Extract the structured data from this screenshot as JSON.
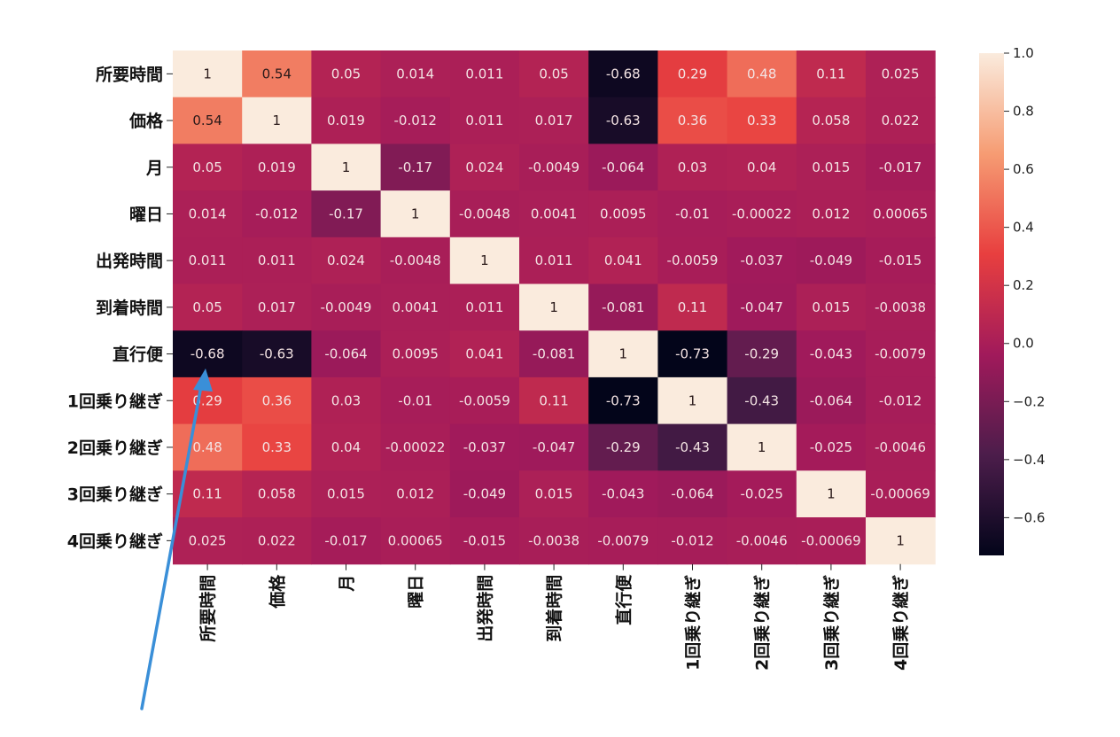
{
  "chart_data": {
    "type": "heatmap",
    "x_labels": [
      "所要時間",
      "価格",
      "月",
      "曜日",
      "出発時間",
      "到着時間",
      "直行便",
      "1回乗り継ぎ",
      "2回乗り継ぎ",
      "3回乗り継ぎ",
      "4回乗り継ぎ"
    ],
    "y_labels": [
      "所要時間",
      "価格",
      "月",
      "曜日",
      "出発時間",
      "到着時間",
      "直行便",
      "1回乗り継ぎ",
      "2回乗り継ぎ",
      "3回乗り継ぎ",
      "4回乗り継ぎ"
    ],
    "values": [
      [
        1,
        0.54,
        0.05,
        0.014,
        0.011,
        0.05,
        -0.68,
        0.29,
        0.48,
        0.11,
        0.025
      ],
      [
        0.54,
        1,
        0.019,
        -0.012,
        0.011,
        0.017,
        -0.63,
        0.36,
        0.33,
        0.058,
        0.022
      ],
      [
        0.05,
        0.019,
        1,
        -0.17,
        0.024,
        -0.0049,
        -0.064,
        0.03,
        0.04,
        0.015,
        -0.017
      ],
      [
        0.014,
        -0.012,
        -0.17,
        1,
        -0.0048,
        0.0041,
        0.0095,
        -0.01,
        -0.00022,
        0.012,
        0.00065
      ],
      [
        0.011,
        0.011,
        0.024,
        -0.0048,
        1,
        0.011,
        0.041,
        -0.0059,
        -0.037,
        -0.049,
        -0.015
      ],
      [
        0.05,
        0.017,
        -0.0049,
        0.0041,
        0.011,
        1,
        -0.081,
        0.11,
        -0.047,
        0.015,
        -0.0038
      ],
      [
        -0.68,
        -0.63,
        -0.064,
        0.0095,
        0.041,
        -0.081,
        1,
        -0.73,
        -0.29,
        -0.043,
        -0.0079
      ],
      [
        0.29,
        0.36,
        0.03,
        -0.01,
        -0.0059,
        0.11,
        -0.73,
        1,
        -0.43,
        -0.064,
        -0.012
      ],
      [
        0.48,
        0.33,
        0.04,
        -0.00022,
        -0.037,
        -0.047,
        -0.29,
        -0.43,
        1,
        -0.025,
        -0.0046
      ],
      [
        0.11,
        0.058,
        0.015,
        0.012,
        -0.049,
        0.015,
        -0.043,
        -0.064,
        -0.025,
        1,
        -0.00069
      ],
      [
        0.025,
        0.022,
        -0.017,
        0.00065,
        -0.015,
        -0.0038,
        -0.0079,
        -0.012,
        -0.0046,
        -0.00069,
        1
      ]
    ],
    "cell_labels": [
      [
        "1",
        "0.54",
        "0.05",
        "0.014",
        "0.011",
        "0.05",
        "-0.68",
        "0.29",
        "0.48",
        "0.11",
        "0.025"
      ],
      [
        "0.54",
        "1",
        "0.019",
        "-0.012",
        "0.011",
        "0.017",
        "-0.63",
        "0.36",
        "0.33",
        "0.058",
        "0.022"
      ],
      [
        "0.05",
        "0.019",
        "1",
        "-0.17",
        "0.024",
        "-0.0049",
        "-0.064",
        "0.03",
        "0.04",
        "0.015",
        "-0.017"
      ],
      [
        "0.014",
        "-0.012",
        "-0.17",
        "1",
        "-0.0048",
        "0.0041",
        "0.0095",
        "-0.01",
        "-0.00022",
        "0.012",
        "0.00065"
      ],
      [
        "0.011",
        "0.011",
        "0.024",
        "-0.0048",
        "1",
        "0.011",
        "0.041",
        "-0.0059",
        "-0.037",
        "-0.049",
        "-0.015"
      ],
      [
        "0.05",
        "0.017",
        "-0.0049",
        "0.0041",
        "0.011",
        "1",
        "-0.081",
        "0.11",
        "-0.047",
        "0.015",
        "-0.0038"
      ],
      [
        "-0.68",
        "-0.63",
        "-0.064",
        "0.0095",
        "0.041",
        "-0.081",
        "1",
        "-0.73",
        "-0.29",
        "-0.043",
        "-0.0079"
      ],
      [
        "0.29",
        "0.36",
        "0.03",
        "-0.01",
        "-0.0059",
        "0.11",
        "-0.73",
        "1",
        "-0.43",
        "-0.064",
        "-0.012"
      ],
      [
        "0.48",
        "0.33",
        "0.04",
        "-0.00022",
        "-0.037",
        "-0.047",
        "-0.29",
        "-0.43",
        "1",
        "-0.025",
        "-0.0046"
      ],
      [
        "0.11",
        "0.058",
        "0.015",
        "0.012",
        "-0.049",
        "0.015",
        "-0.043",
        "-0.064",
        "-0.025",
        "1",
        "-0.00069"
      ],
      [
        "0.025",
        "0.022",
        "-0.017",
        "0.00065",
        "-0.015",
        "-0.0038",
        "-0.0079",
        "-0.012",
        "-0.0046",
        "-0.00069",
        "1"
      ]
    ],
    "colorbar": {
      "range": [
        -0.73,
        1.0
      ],
      "ticks": [
        1.0,
        0.8,
        0.6,
        0.4,
        0.2,
        0.0,
        -0.2,
        -0.4,
        -0.6
      ],
      "tick_labels": [
        "1.0",
        "0.8",
        "0.6",
        "0.4",
        "0.2",
        "0.0",
        "−0.2",
        "−0.4",
        "−0.6"
      ],
      "colormap": "rocket",
      "colors": [
        "#03051a",
        "#4c1d4b",
        "#a11a5b",
        "#e83f3f",
        "#f69c73",
        "#faebdd"
      ]
    },
    "annotation": {
      "type": "arrow",
      "color": "#3a8fd8",
      "points_to": "直行便 / 所要時間 cell"
    }
  }
}
